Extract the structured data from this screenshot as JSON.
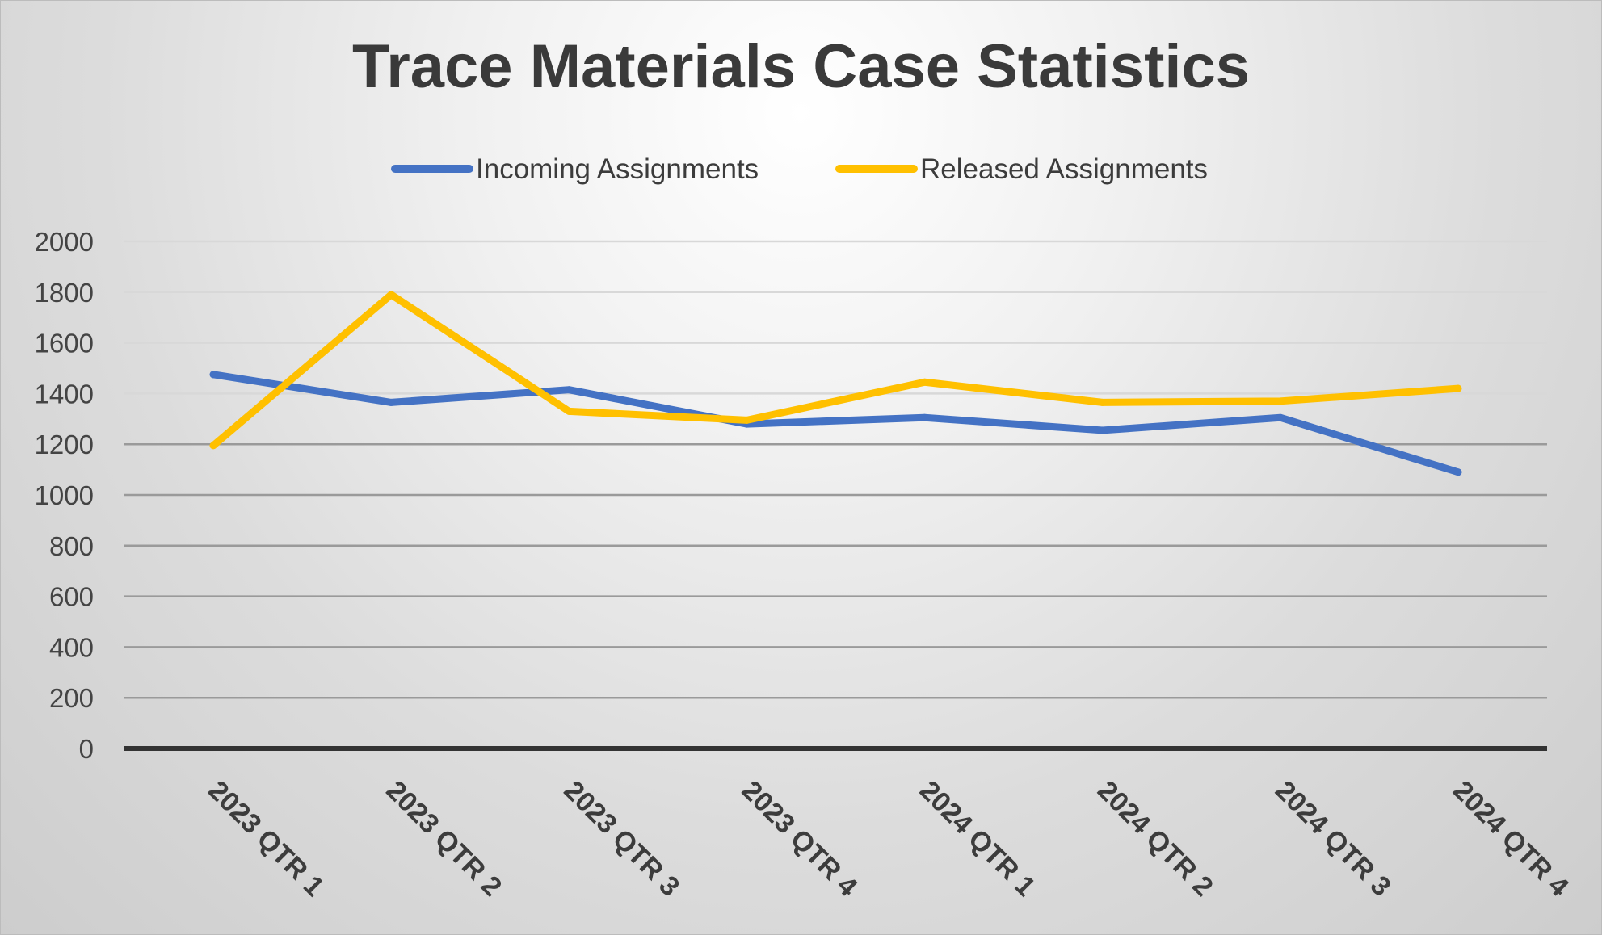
{
  "chart_data": {
    "type": "line",
    "title": "Trace Materials Case Statistics",
    "xlabel": "",
    "ylabel": "",
    "ylim": [
      0,
      2000
    ],
    "yticks": [
      0,
      200,
      400,
      600,
      800,
      1000,
      1200,
      1400,
      1600,
      1800,
      2000
    ],
    "categories": [
      "2023 QTR 1",
      "2023 QTR 2",
      "2023 QTR 3",
      "2023 QTR 4",
      "2024 QTR 1",
      "2024 QTR 2",
      "2024 QTR 3",
      "2024 QTR 4"
    ],
    "series": [
      {
        "name": "Incoming Assignments",
        "color": "#4472C4",
        "values": [
          1475,
          1365,
          1415,
          1280,
          1305,
          1255,
          1305,
          1090
        ]
      },
      {
        "name": "Released Assignments",
        "color": "#FFC000",
        "values": [
          1195,
          1790,
          1330,
          1295,
          1445,
          1365,
          1370,
          1420
        ]
      }
    ],
    "legend": "top",
    "grid": true
  }
}
